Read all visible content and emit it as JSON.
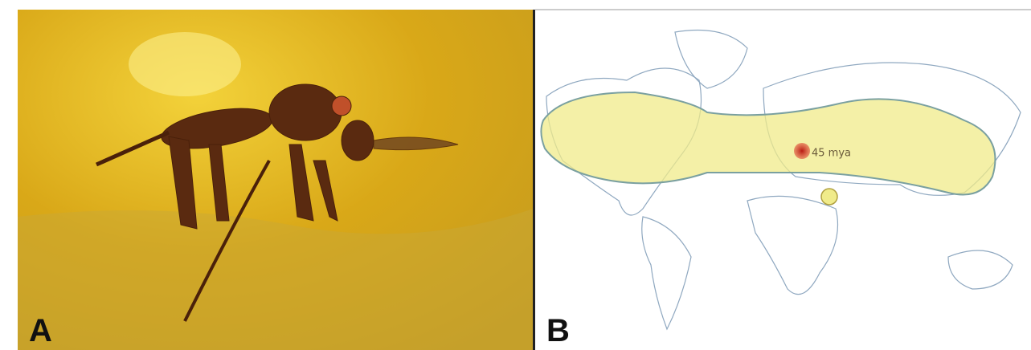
{
  "panels": [
    {
      "label": "A"
    },
    {
      "label": "B",
      "annotation": "45 mya"
    }
  ]
}
